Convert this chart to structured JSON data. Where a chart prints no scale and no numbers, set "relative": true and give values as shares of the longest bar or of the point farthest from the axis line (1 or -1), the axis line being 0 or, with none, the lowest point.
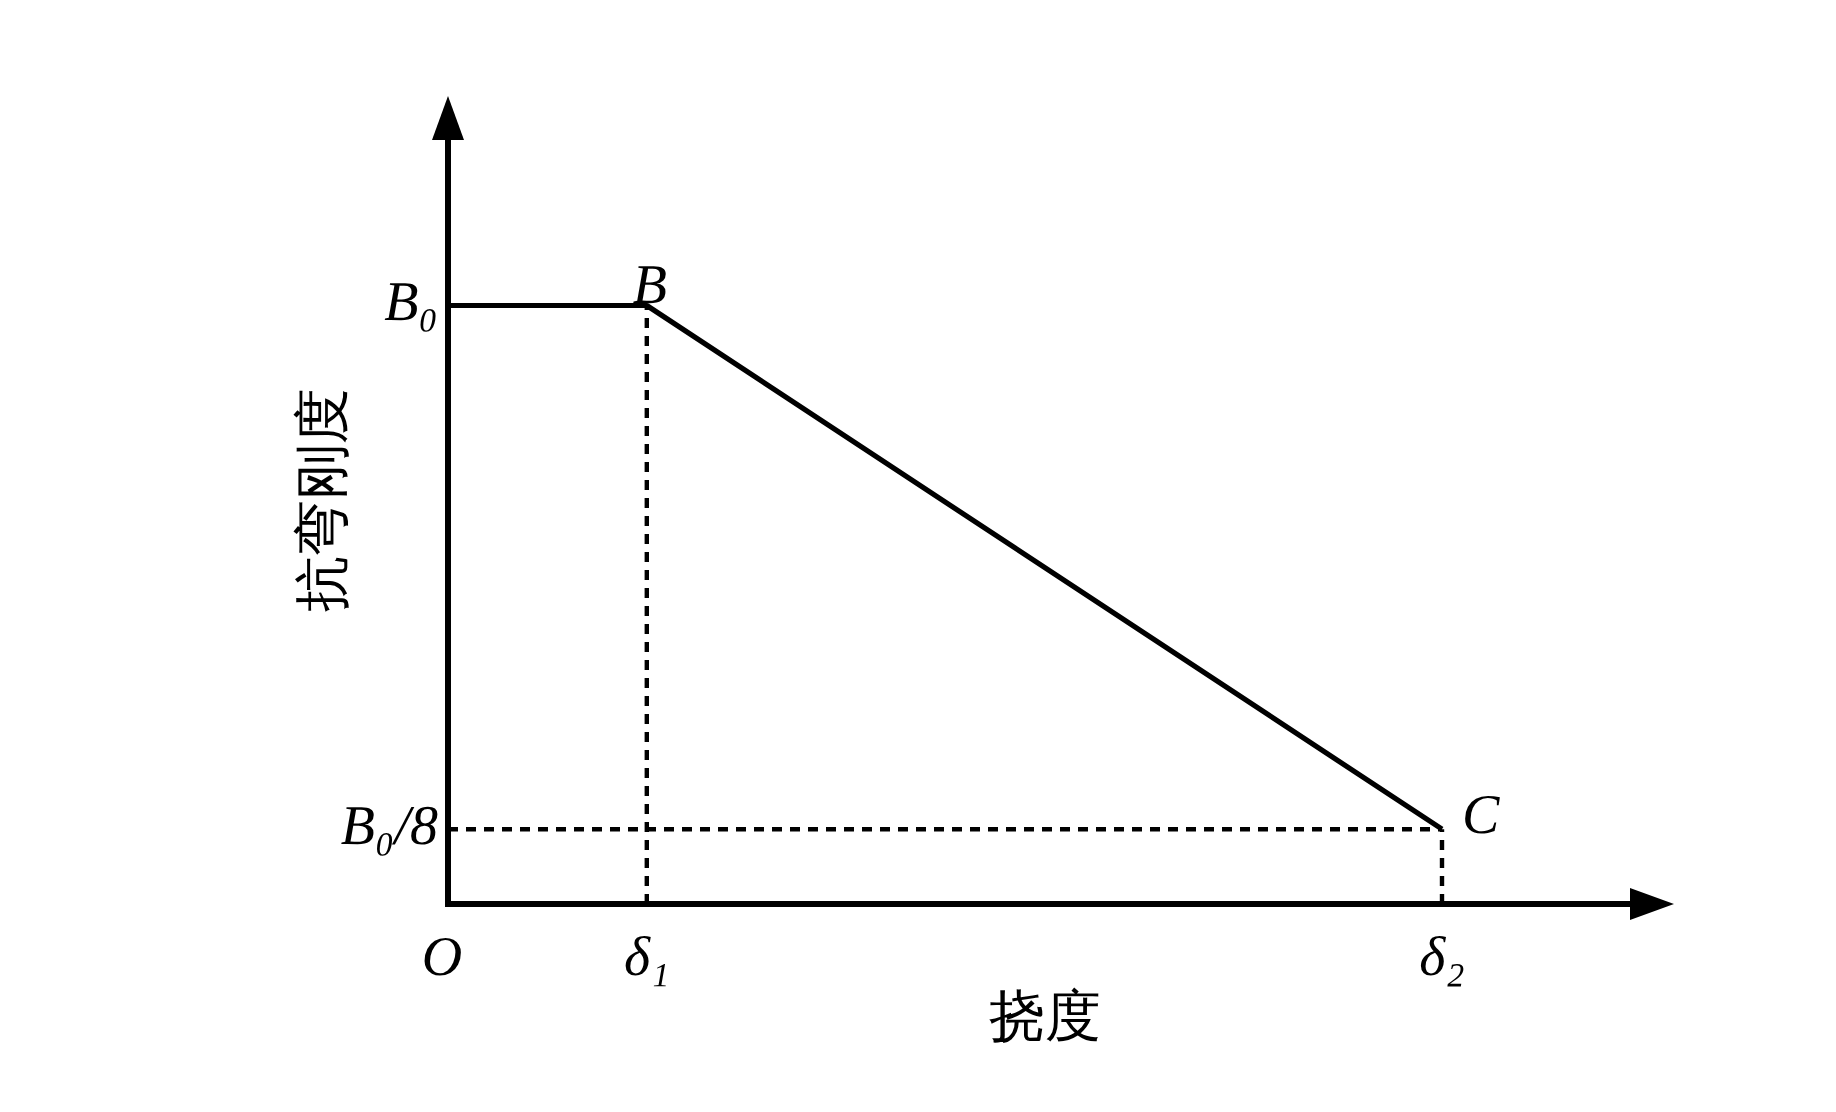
{
  "chart_data": {
    "type": "line",
    "relative": true,
    "xlabel": "挠度",
    "ylabel": "抗弯刚度",
    "categories": [
      "O",
      "δ₁",
      null,
      null,
      null,
      "δ₂"
    ],
    "marker": "none",
    "series": [
      {
        "color": "#000000",
        "line_style": "solid",
        "x": [
          "O",
          "δ₁",
          "δ₂"
        ],
        "values": [
          1,
          1,
          0.125
        ]
      },
      {
        "color": "#000000",
        "line_style": "dashed",
        "x": [
          "δ₁",
          "δ₁"
        ],
        "values": [
          0,
          1
        ]
      },
      {
        "color": "#000000",
        "line_style": "dashed",
        "x": [
          "O",
          "δ₂"
        ],
        "values": [
          0.125,
          0.125
        ]
      },
      {
        "color": "#000000",
        "line_style": "dashed",
        "x": [
          "δ₂",
          "δ₂"
        ],
        "values": [
          0,
          0.125
        ]
      }
    ],
    "annotations": [
      {
        "text": "B₀",
        "x": "O",
        "y": 1
      },
      {
        "text": "B₀/8",
        "x": "O",
        "y": 0.125
      },
      {
        "text": "B",
        "x": "δ₁",
        "y": 1
      },
      {
        "text": "C",
        "x": "δ₂",
        "y": 0.125
      }
    ]
  }
}
